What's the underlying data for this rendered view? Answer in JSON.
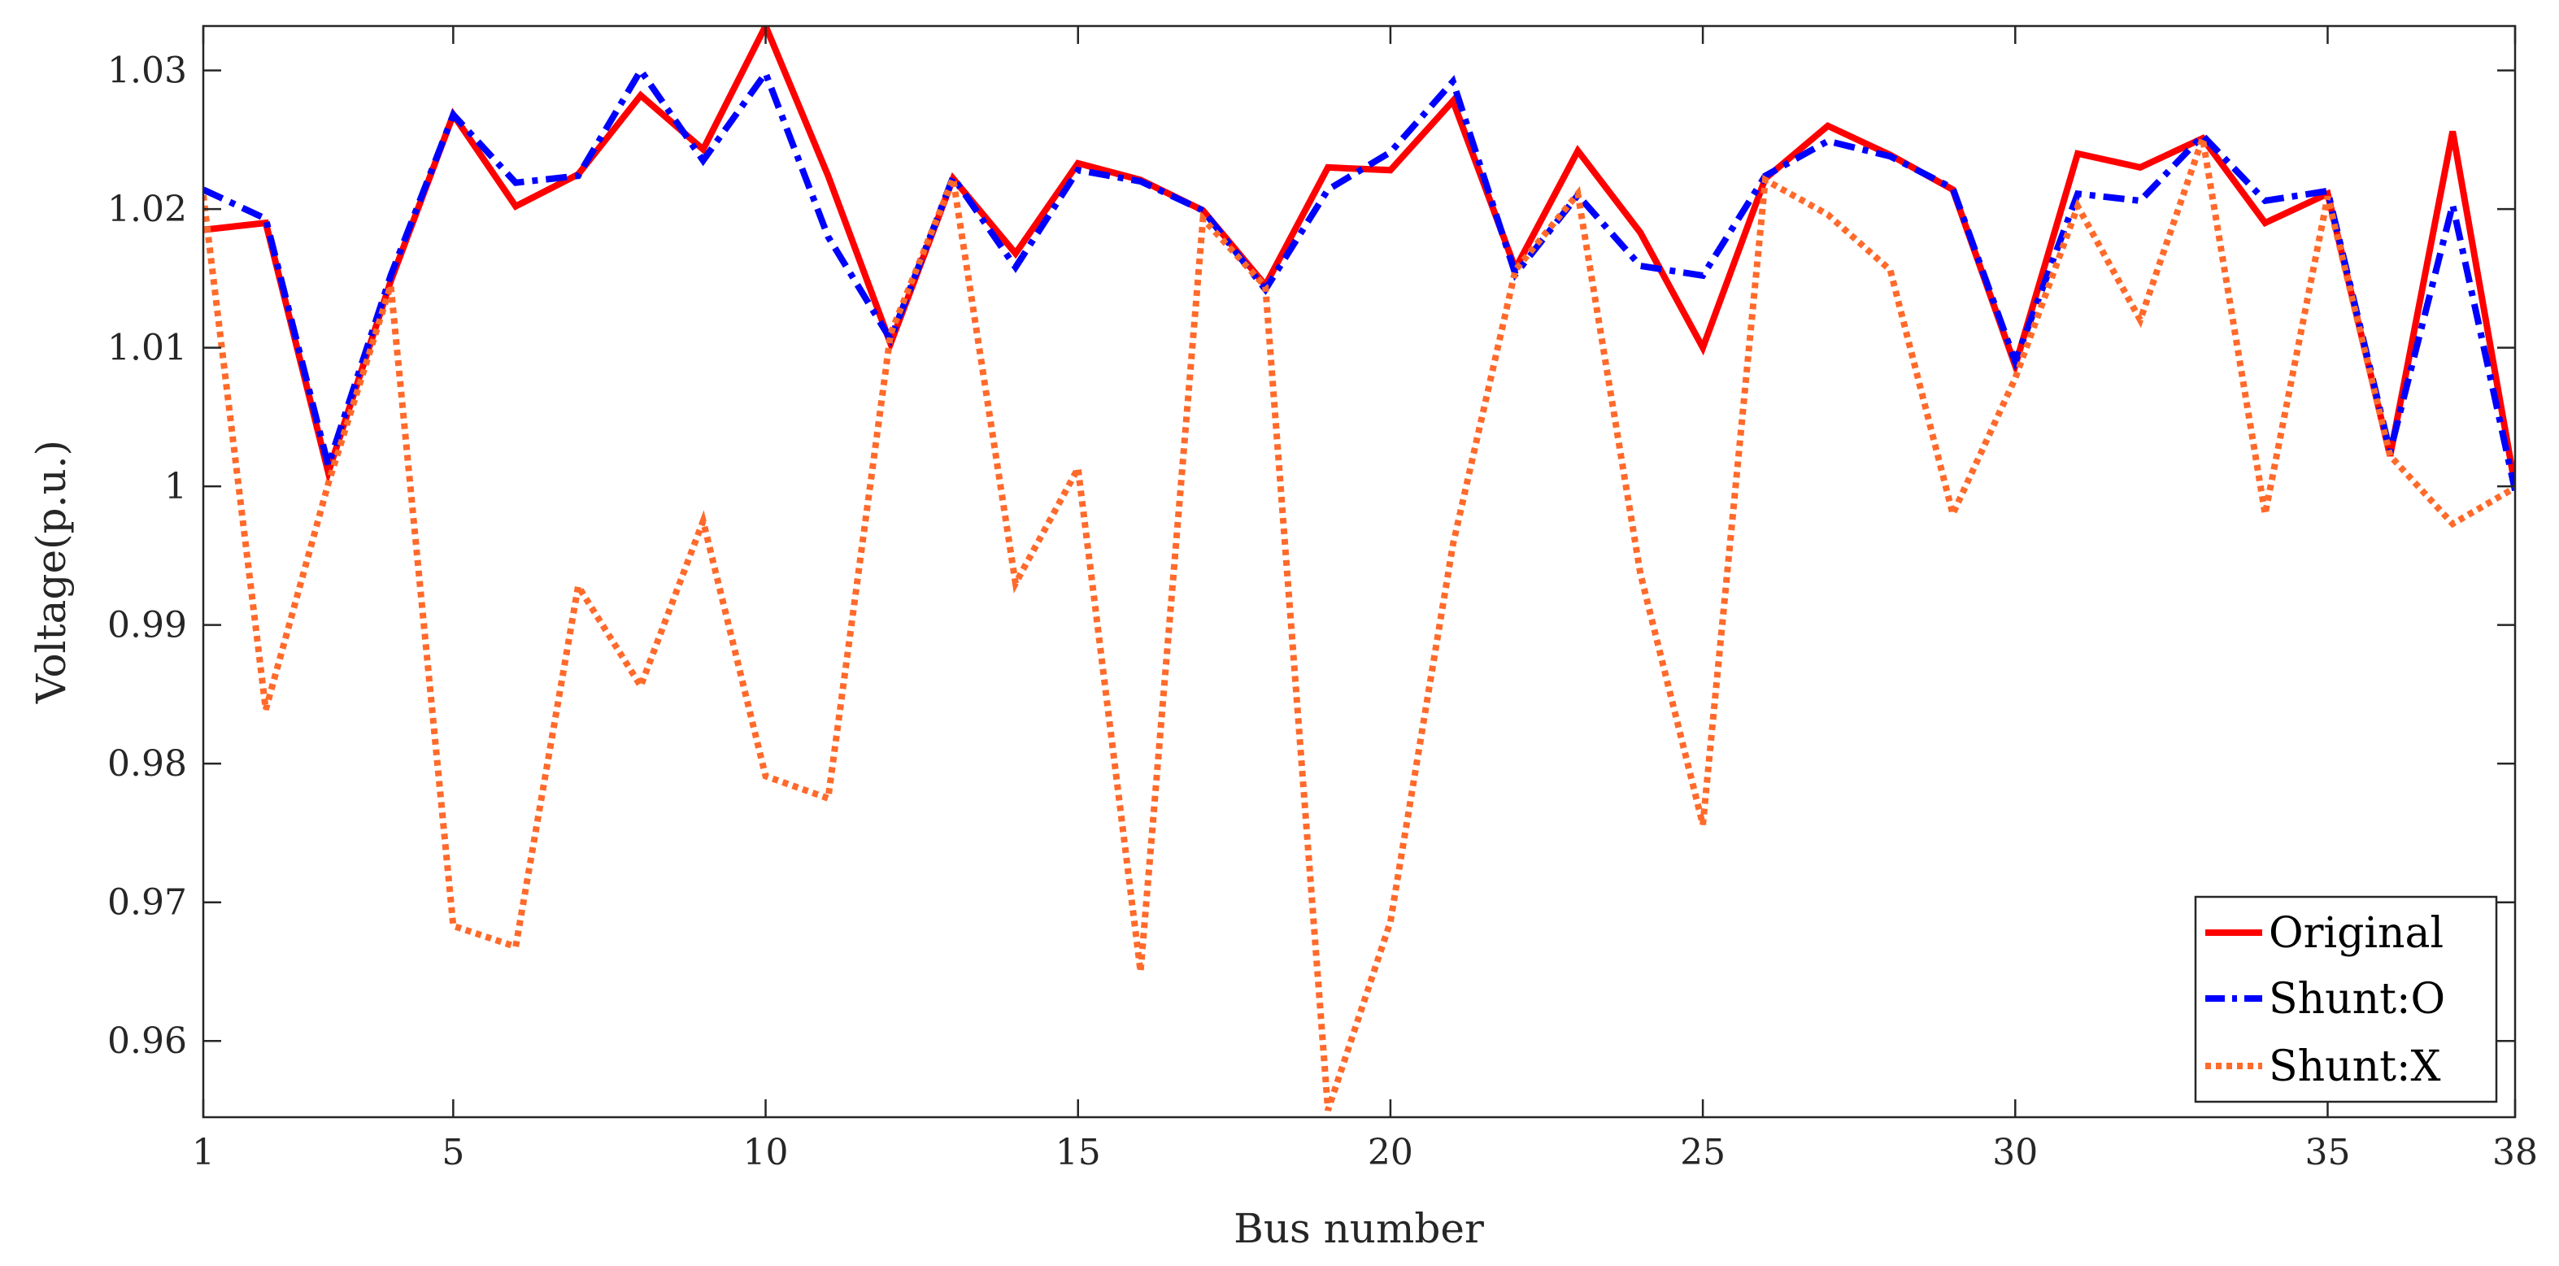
{
  "chart_data": {
    "type": "line",
    "title": "",
    "xlabel": "Bus number",
    "ylabel": "Voltage(p.u.)",
    "xlim": [
      1,
      38
    ],
    "ylim": [
      0.9545,
      1.0332
    ],
    "xticks": [
      1,
      5,
      10,
      15,
      20,
      25,
      30,
      35,
      38
    ],
    "yticks": [
      0.96,
      0.97,
      0.98,
      0.99,
      1,
      1.01,
      1.02,
      1.03
    ],
    "xtick_labels": [
      "1",
      "5",
      "10",
      "15",
      "20",
      "25",
      "30",
      "35",
      "38"
    ],
    "ytick_labels": [
      "0.96",
      "0.97",
      "0.98",
      "0.99",
      "1",
      "1.01",
      "1.02",
      "1.03"
    ],
    "grid": false,
    "legend_position": "bottom-right",
    "x": [
      1,
      2,
      3,
      4,
      5,
      6,
      7,
      8,
      9,
      10,
      11,
      12,
      13,
      14,
      15,
      16,
      17,
      18,
      19,
      20,
      21,
      22,
      23,
      24,
      25,
      26,
      27,
      28,
      29,
      30,
      31,
      32,
      33,
      34,
      35,
      36,
      37,
      38
    ],
    "series": [
      {
        "name": "Original",
        "color": "#ff0000",
        "style": "solid",
        "values": [
          1.0185,
          1.019,
          1.001,
          1.0148,
          1.0268,
          1.0202,
          1.0225,
          1.0282,
          1.0243,
          1.0332,
          1.0224,
          1.0103,
          1.0222,
          1.0168,
          1.0233,
          1.0221,
          1.0199,
          1.0145,
          1.023,
          1.0228,
          1.0278,
          1.0157,
          1.0242,
          1.0183,
          1.01,
          1.0222,
          1.026,
          1.0239,
          1.0214,
          1.0087,
          1.024,
          1.023,
          1.0251,
          1.019,
          1.0211,
          1.0022,
          1.0256,
          1.0
        ]
      },
      {
        "name": "Shunt:O",
        "color": "#0000ff",
        "style": "dashdot",
        "values": [
          1.0214,
          1.0193,
          1.0015,
          1.0152,
          1.0268,
          1.0219,
          1.0224,
          1.03,
          1.0235,
          1.0298,
          1.018,
          1.0106,
          1.0223,
          1.0158,
          1.0228,
          1.022,
          1.0199,
          1.0142,
          1.0214,
          1.0241,
          1.0292,
          1.0153,
          1.021,
          1.0159,
          1.0152,
          1.0224,
          1.0249,
          1.0238,
          1.0215,
          1.009,
          1.0211,
          1.0206,
          1.0253,
          1.0206,
          1.0213,
          1.0025,
          1.0203,
          0.9997
        ]
      },
      {
        "name": "Shunt:X",
        "color": "#ff6a2b",
        "style": "dotted",
        "values": [
          1.021,
          0.9839,
          1.0002,
          1.0145,
          0.9683,
          0.9668,
          0.9928,
          0.9856,
          0.9975,
          0.9791,
          0.9775,
          1.011,
          1.0222,
          0.993,
          1.0013,
          0.965,
          1.0193,
          1.0144,
          0.955,
          0.9686,
          0.9958,
          1.0156,
          1.0211,
          0.9937,
          0.9756,
          1.0221,
          1.0196,
          1.0156,
          0.998,
          1.0078,
          1.0202,
          1.012,
          1.0251,
          0.998,
          1.0209,
          1.0022,
          0.9973,
          0.9999
        ]
      }
    ]
  }
}
